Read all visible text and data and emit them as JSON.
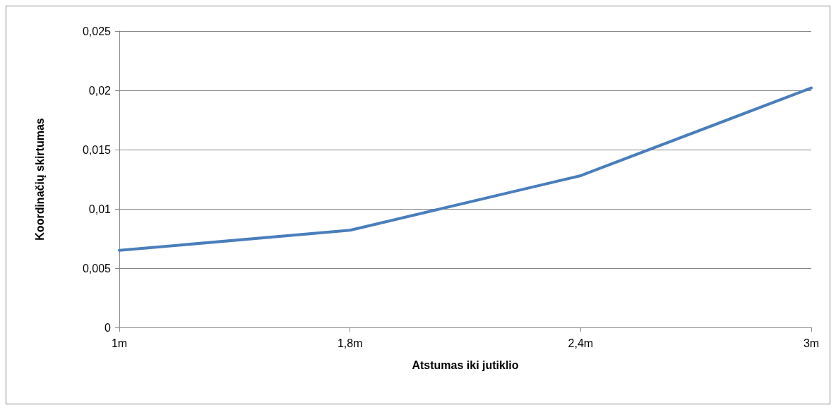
{
  "chart_data": {
    "type": "line",
    "xlabel": "Atstumas iki jutiklio",
    "ylabel": "Koordinačių skirtumas",
    "categories": [
      "1m",
      "1,8m",
      "2,4m",
      "3m"
    ],
    "series": [
      {
        "color": "#4a7ebb",
        "values": [
          0.0065,
          0.0082,
          0.0128,
          0.0202
        ]
      }
    ],
    "ylim": [
      0,
      0.025
    ],
    "yticks": [
      {
        "value": 0,
        "label": "0"
      },
      {
        "value": 0.005,
        "label": "0,005"
      },
      {
        "value": 0.01,
        "label": "0,01"
      },
      {
        "value": 0.015,
        "label": "0,015"
      },
      {
        "value": 0.02,
        "label": "0,02"
      },
      {
        "value": 0.025,
        "label": "0,025"
      }
    ],
    "grid": "y",
    "marker": "none",
    "line_style": "solid"
  }
}
